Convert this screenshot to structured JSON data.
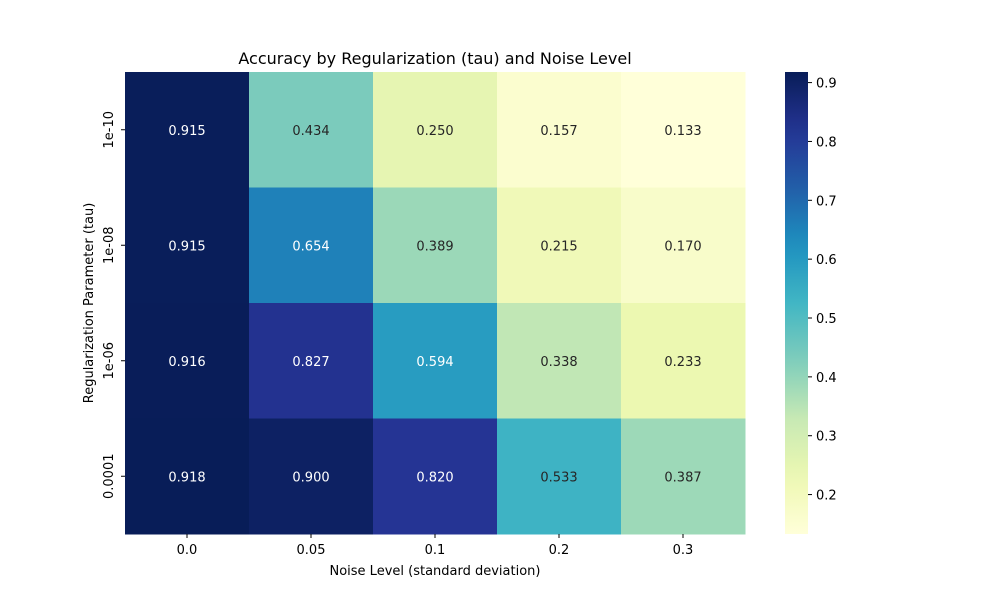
{
  "chart_data": {
    "type": "heatmap",
    "title": "Accuracy by Regularization (tau) and Noise Level",
    "xlabel": "Noise Level (standard deviation)",
    "ylabel": "Regularization Parameter (tau)",
    "x_categories": [
      "0.0",
      "0.05",
      "0.1",
      "0.2",
      "0.3"
    ],
    "y_categories": [
      "1e-10",
      "1e-08",
      "1e-06",
      "0.0001"
    ],
    "values": [
      [
        0.915,
        0.434,
        0.25,
        0.157,
        0.133
      ],
      [
        0.915,
        0.654,
        0.389,
        0.215,
        0.17
      ],
      [
        0.916,
        0.827,
        0.594,
        0.338,
        0.233
      ],
      [
        0.918,
        0.9,
        0.82,
        0.533,
        0.387
      ]
    ],
    "value_format": "0.000",
    "colormap": "YlGnBu",
    "colorbar": {
      "min": 0.133,
      "max": 0.918,
      "ticks": [
        0.2,
        0.3,
        0.4,
        0.5,
        0.6,
        0.7,
        0.8,
        0.9
      ],
      "tick_labels": [
        "0.2",
        "0.3",
        "0.4",
        "0.5",
        "0.6",
        "0.7",
        "0.8",
        "0.9"
      ]
    },
    "grid": false
  }
}
